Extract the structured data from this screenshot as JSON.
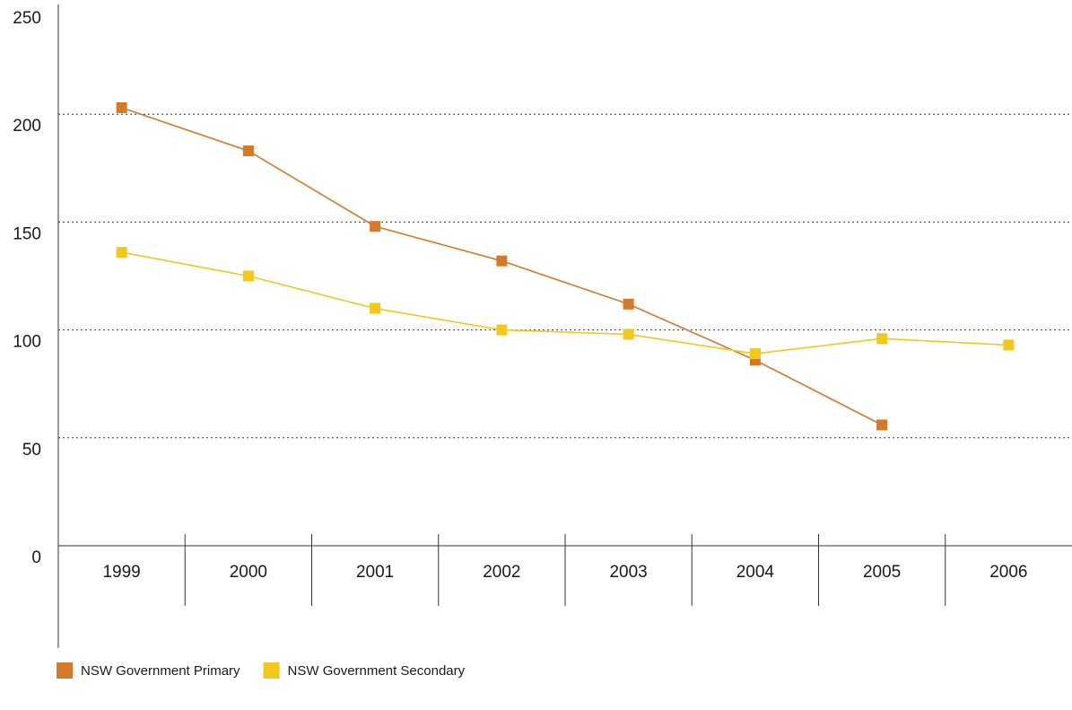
{
  "chart_data": {
    "type": "line",
    "categories": [
      "1999",
      "2000",
      "2001",
      "2002",
      "2003",
      "2004",
      "2005",
      "2006"
    ],
    "series": [
      {
        "name": "NSW Government Primary",
        "color": "#d4782a",
        "values": [
          203,
          183,
          148,
          132,
          112,
          86,
          56,
          null
        ]
      },
      {
        "name": "NSW Government Secondary",
        "color": "#f0c81e",
        "values": [
          136,
          125,
          110,
          100,
          98,
          89,
          96,
          93
        ]
      }
    ],
    "ylim": [
      0,
      250
    ],
    "yticks": [
      0,
      50,
      100,
      150,
      200,
      250
    ],
    "grid": true
  }
}
